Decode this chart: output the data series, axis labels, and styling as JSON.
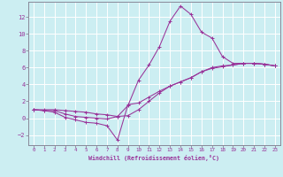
{
  "xlabel": "Windchill (Refroidissement éolien,°C)",
  "bg_color": "#cceef2",
  "grid_color": "#ffffff",
  "line_color": "#993399",
  "spine_color": "#888899",
  "xlim": [
    -0.5,
    23.5
  ],
  "ylim": [
    -3.2,
    13.8
  ],
  "xticks": [
    0,
    1,
    2,
    3,
    4,
    5,
    6,
    7,
    8,
    9,
    10,
    11,
    12,
    13,
    14,
    15,
    16,
    17,
    18,
    19,
    20,
    21,
    22,
    23
  ],
  "yticks": [
    -2,
    0,
    2,
    4,
    6,
    8,
    10,
    12
  ],
  "line1_x": [
    0,
    1,
    2,
    3,
    4,
    5,
    6,
    7,
    8,
    9,
    10,
    11,
    12,
    13,
    14,
    15,
    16,
    17,
    18,
    19,
    20,
    21,
    22,
    23
  ],
  "line1_y": [
    1,
    0.9,
    0.9,
    0.5,
    0.2,
    0.1,
    0.0,
    -0.1,
    0.2,
    1.5,
    4.5,
    6.3,
    8.5,
    11.5,
    13.3,
    12.3,
    10.2,
    9.5,
    7.3,
    6.5,
    6.5,
    6.5,
    6.4,
    6.2
  ],
  "line2_x": [
    0,
    1,
    2,
    3,
    4,
    5,
    6,
    7,
    8,
    9,
    10,
    11,
    12,
    13,
    14,
    15,
    16,
    17,
    18,
    19,
    20,
    21,
    22,
    23
  ],
  "line2_y": [
    1,
    0.9,
    0.7,
    0.1,
    -0.2,
    -0.5,
    -0.6,
    -0.9,
    -2.6,
    1.6,
    1.8,
    2.5,
    3.2,
    3.8,
    4.3,
    4.8,
    5.5,
    6.0,
    6.2,
    6.3,
    6.5,
    6.5,
    6.4,
    6.2
  ],
  "line3_x": [
    0,
    1,
    2,
    3,
    4,
    5,
    6,
    7,
    8,
    9,
    10,
    11,
    12,
    13,
    14,
    15,
    16,
    17,
    18,
    19,
    20,
    21,
    22,
    23
  ],
  "line3_y": [
    1,
    1.0,
    1.0,
    0.9,
    0.8,
    0.7,
    0.5,
    0.4,
    0.2,
    0.3,
    1.0,
    2.0,
    3.0,
    3.8,
    4.3,
    4.8,
    5.5,
    5.9,
    6.1,
    6.3,
    6.5,
    6.5,
    6.4,
    6.2
  ]
}
